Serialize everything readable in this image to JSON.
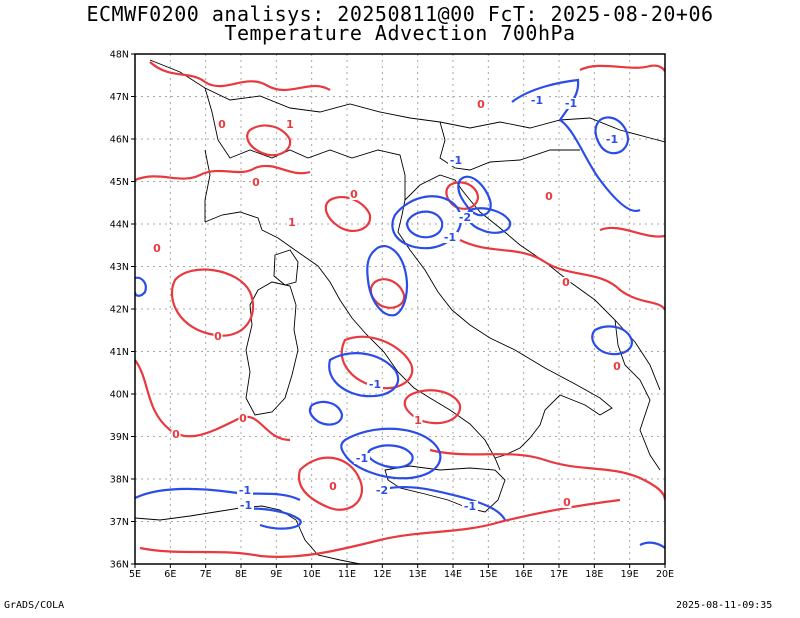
{
  "header": {
    "line1": "ECMWF0200 analisys: 20250811@00 FcT: 2025-08-20+06",
    "line2": "Temperature Advection 700hPa"
  },
  "footer": {
    "left": "GrADS/COLA",
    "right": "2025-08-11-09:35"
  },
  "map": {
    "lon_labels": [
      "5E",
      "6E",
      "7E",
      "8E",
      "9E",
      "10E",
      "11E",
      "12E",
      "13E",
      "14E",
      "15E",
      "16E",
      "17E",
      "18E",
      "19E",
      "20E"
    ],
    "lat_labels": [
      "48N",
      "47N",
      "46N",
      "45N",
      "44N",
      "43N",
      "42N",
      "41N",
      "40N",
      "39N",
      "38N",
      "37N",
      "36N"
    ],
    "colors": {
      "positive_contour": "#e8393f",
      "negative_contour": "#2a4de8",
      "coastline": "#000000",
      "grid": "#a8a8a8"
    },
    "contour_labels": [
      {
        "text": "0",
        "sign": "pos"
      },
      {
        "text": "1",
        "sign": "pos"
      },
      {
        "text": "0",
        "sign": "pos"
      },
      {
        "text": "0",
        "sign": "pos"
      },
      {
        "text": "0",
        "sign": "pos"
      },
      {
        "text": "1",
        "sign": "pos"
      },
      {
        "text": "0",
        "sign": "pos"
      },
      {
        "text": "0",
        "sign": "pos"
      },
      {
        "text": "0",
        "sign": "pos"
      },
      {
        "text": "0",
        "sign": "pos"
      },
      {
        "text": "1",
        "sign": "pos"
      },
      {
        "text": "0",
        "sign": "pos"
      },
      {
        "text": "0",
        "sign": "pos"
      },
      {
        "text": "0",
        "sign": "pos"
      },
      {
        "text": "0",
        "sign": "pos"
      },
      {
        "text": "0",
        "sign": "pos"
      },
      {
        "text": "-1",
        "sign": "neg"
      },
      {
        "text": "-1",
        "sign": "neg"
      },
      {
        "text": "-1",
        "sign": "neg"
      },
      {
        "text": "-1",
        "sign": "neg"
      },
      {
        "text": "-2",
        "sign": "neg"
      },
      {
        "text": "-1",
        "sign": "neg"
      },
      {
        "text": "-1",
        "sign": "neg"
      },
      {
        "text": "-1",
        "sign": "neg"
      },
      {
        "text": "-1",
        "sign": "neg"
      },
      {
        "text": "-2",
        "sign": "neg"
      },
      {
        "text": "-1",
        "sign": "neg"
      },
      {
        "text": "-1",
        "sign": "neg"
      }
    ]
  }
}
